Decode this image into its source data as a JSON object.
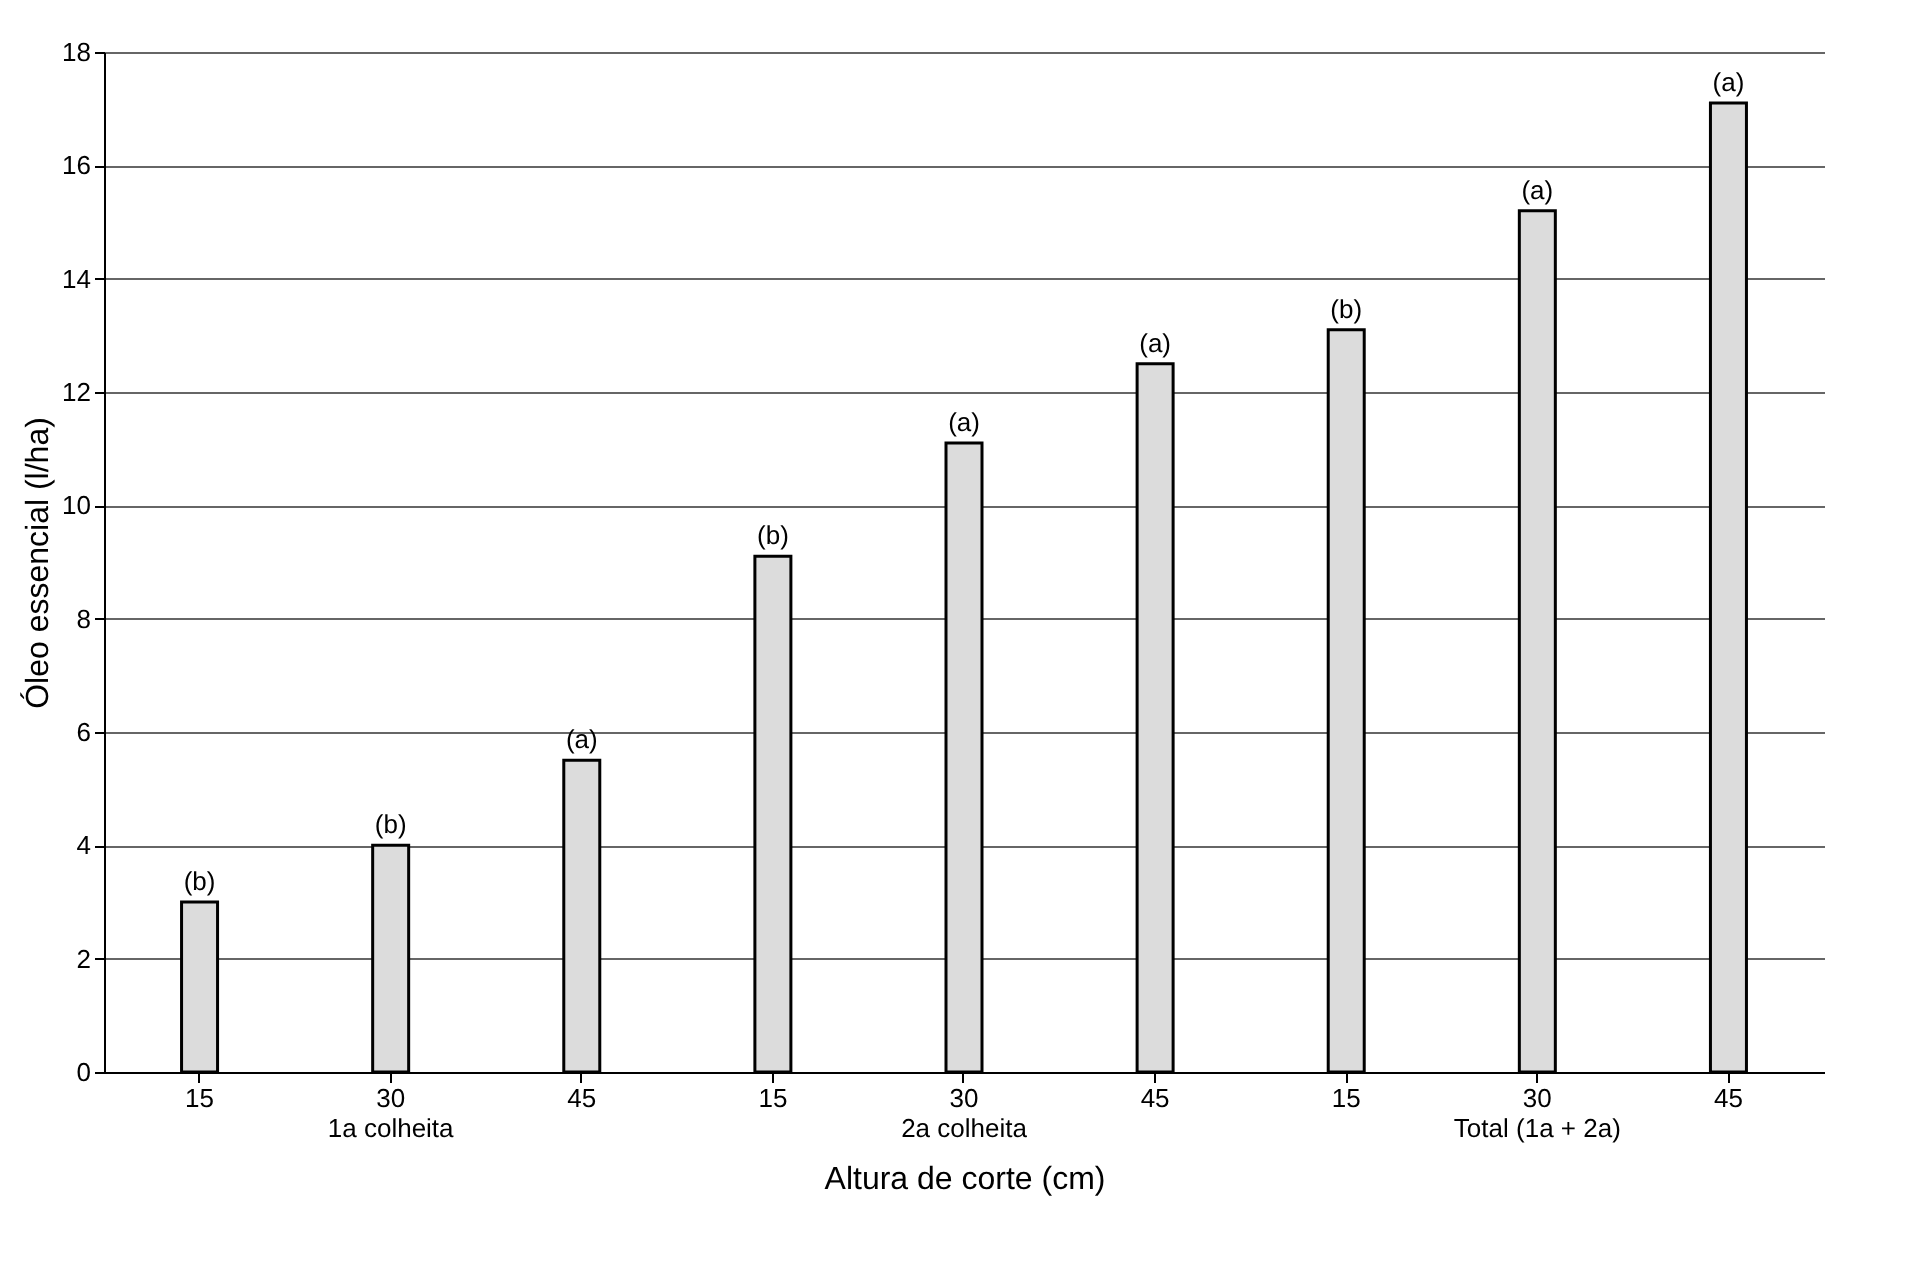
{
  "chart_data": {
    "type": "bar",
    "xlabel": "Altura de corte (cm)",
    "ylabel": "Óleo essencial (l/ha)",
    "categories": [
      "15",
      "30\n1a colheita",
      "45",
      "15",
      "30\n2a colheita",
      "45",
      "15",
      "30\nTotal (1a + 2a)",
      "45"
    ],
    "values": [
      3.0,
      4.0,
      5.5,
      9.1,
      11.1,
      12.5,
      13.1,
      15.2,
      17.1
    ],
    "value_labels": [
      "(b)",
      "(b)",
      "(a)",
      "(b)",
      "(a)",
      "(a)",
      "(b)",
      "(a)",
      "(a)"
    ],
    "color": "#dcdcdc",
    "ylim": [
      0,
      18
    ],
    "yticks": [
      0,
      2,
      4,
      6,
      8,
      10,
      12,
      14,
      16,
      18
    ],
    "grid": "y"
  }
}
